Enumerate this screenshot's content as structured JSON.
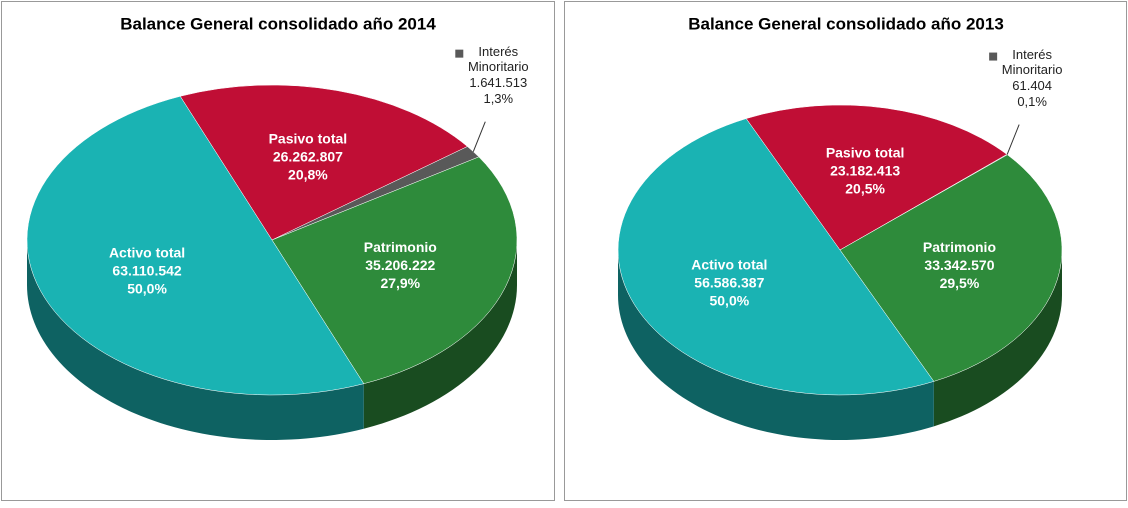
{
  "chart_data": [
    {
      "type": "pie",
      "title": "Balance General consolidado año 2014",
      "categories": [
        "Pasivo total",
        "Interés Minoritario",
        "Patrimonio",
        "Activo total"
      ],
      "values": [
        26262807,
        1641513,
        35206222,
        63110542
      ],
      "value_labels": [
        "26.262.807",
        "1.641.513",
        "35.206.222",
        "63.110.542"
      ],
      "percents": [
        20.8,
        1.3,
        27.9,
        50.0
      ],
      "percent_labels": [
        "20,8%",
        "1,3%",
        "27,9%",
        "50,0%"
      ],
      "colors": [
        "#c00e35",
        "#595959",
        "#2e8b3b",
        "#1ab3b3"
      ]
    },
    {
      "type": "pie",
      "title": "Balance General consolidado año 2013",
      "categories": [
        "Pasivo total",
        "Interés Minoritario",
        "Patrimonio",
        "Activo total"
      ],
      "values": [
        23182413,
        61404,
        33342570,
        56586387
      ],
      "value_labels": [
        "23.182.413",
        "61.404",
        "33.342.570",
        "56.586.387"
      ],
      "percents": [
        20.5,
        0.1,
        29.5,
        50.0
      ],
      "percent_labels": [
        "20,5%",
        "0,1%",
        "29,5%",
        "50,0%"
      ],
      "colors": [
        "#c00e35",
        "#595959",
        "#2e8b3b",
        "#1ab3b3"
      ]
    }
  ]
}
